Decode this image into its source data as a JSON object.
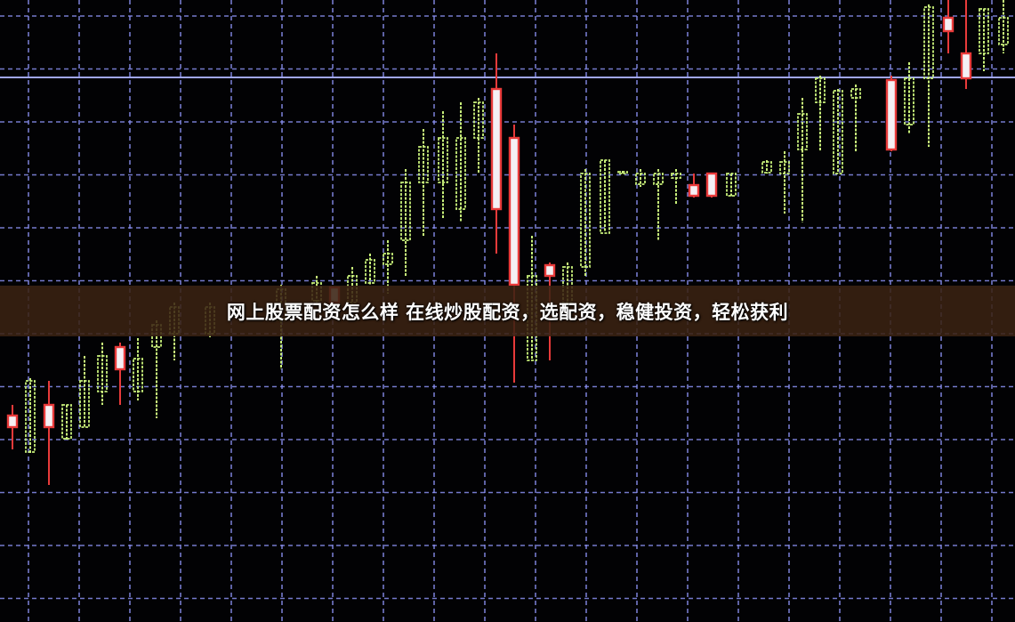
{
  "banner": {
    "title": "网上股票配资怎么样 在线炒股配资，选配资，稳健投资，轻松获利"
  },
  "colors": {
    "grid": "#8a8ff0",
    "rising": "#c8f07a",
    "falling": "#e83a3a",
    "falling_fill": "#f4f0f4",
    "banner_bg": "#3a2212"
  }
}
